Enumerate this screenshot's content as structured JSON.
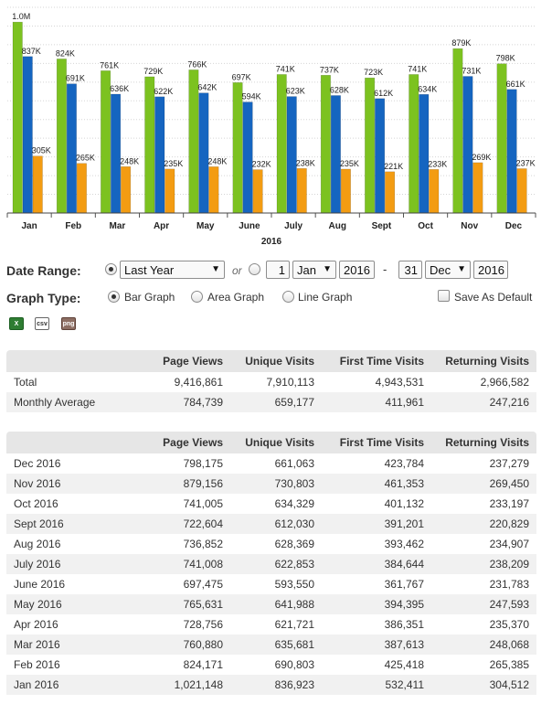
{
  "chart_data": {
    "type": "bar",
    "xlabel": "2016",
    "categories": [
      "Jan",
      "Feb",
      "Mar",
      "Apr",
      "May",
      "June",
      "July",
      "Aug",
      "Sept",
      "Oct",
      "Nov",
      "Dec"
    ],
    "ylim": [
      0,
      1100000
    ],
    "grid": true,
    "series": [
      {
        "color": "#7cc220",
        "values": [
          1021148,
          824171,
          760880,
          728756,
          765631,
          697475,
          741008,
          736852,
          722604,
          741005,
          879156,
          798175
        ],
        "labels": [
          "1.0M",
          "824K",
          "761K",
          "729K",
          "766K",
          "697K",
          "741K",
          "737K",
          "723K",
          "741K",
          "879K",
          "798K"
        ]
      },
      {
        "color": "#1565c0",
        "values": [
          836923,
          690803,
          635681,
          621721,
          641988,
          593550,
          622853,
          628369,
          612030,
          634329,
          730803,
          661063
        ],
        "labels": [
          "837K",
          "691K",
          "636K",
          "622K",
          "642K",
          "594K",
          "623K",
          "628K",
          "612K",
          "634K",
          "731K",
          "661K"
        ]
      },
      {
        "color": "#f39c12",
        "values": [
          304512,
          265385,
          248068,
          235370,
          247593,
          231783,
          238209,
          234907,
          220829,
          233197,
          269450,
          237279
        ],
        "labels": [
          "305K",
          "265K",
          "248K",
          "235K",
          "248K",
          "232K",
          "238K",
          "235K",
          "221K",
          "233K",
          "269K",
          "237K"
        ]
      }
    ]
  },
  "controls": {
    "date_range_label": "Date Range:",
    "range_select": "Last Year",
    "or_text": "or",
    "from_day": "1",
    "from_month": "Jan",
    "from_year": "2016",
    "dash": "-",
    "to_day": "31",
    "to_month": "Dec",
    "to_year": "2016",
    "graph_type_label": "Graph Type:",
    "bar_graph": "Bar Graph",
    "area_graph": "Area Graph",
    "line_graph": "Line Graph",
    "save_default": "Save As Default"
  },
  "export_icons": [
    "excel-icon",
    "csv-icon",
    "png-icon"
  ],
  "export_labels": {
    "csv": "csv",
    "png": "png"
  },
  "summary": {
    "headers": [
      "",
      "Page Views",
      "Unique Visits",
      "First Time Visits",
      "Returning Visits"
    ],
    "rows": [
      [
        "Total",
        "9,416,861",
        "7,910,113",
        "4,943,531",
        "2,966,582"
      ],
      [
        "Monthly Average",
        "784,739",
        "659,177",
        "411,961",
        "247,216"
      ]
    ]
  },
  "monthly": {
    "headers": [
      "",
      "Page Views",
      "Unique Visits",
      "First Time Visits",
      "Returning Visits"
    ],
    "rows": [
      [
        "Dec 2016",
        "798,175",
        "661,063",
        "423,784",
        "237,279"
      ],
      [
        "Nov 2016",
        "879,156",
        "730,803",
        "461,353",
        "269,450"
      ],
      [
        "Oct 2016",
        "741,005",
        "634,329",
        "401,132",
        "233,197"
      ],
      [
        "Sept 2016",
        "722,604",
        "612,030",
        "391,201",
        "220,829"
      ],
      [
        "Aug 2016",
        "736,852",
        "628,369",
        "393,462",
        "234,907"
      ],
      [
        "July 2016",
        "741,008",
        "622,853",
        "384,644",
        "238,209"
      ],
      [
        "June 2016",
        "697,475",
        "593,550",
        "361,767",
        "231,783"
      ],
      [
        "May 2016",
        "765,631",
        "641,988",
        "394,395",
        "247,593"
      ],
      [
        "Apr 2016",
        "728,756",
        "621,721",
        "386,351",
        "235,370"
      ],
      [
        "Mar 2016",
        "760,880",
        "635,681",
        "387,613",
        "248,068"
      ],
      [
        "Feb 2016",
        "824,171",
        "690,803",
        "425,418",
        "265,385"
      ],
      [
        "Jan 2016",
        "1,021,148",
        "836,923",
        "532,411",
        "304,512"
      ]
    ]
  }
}
